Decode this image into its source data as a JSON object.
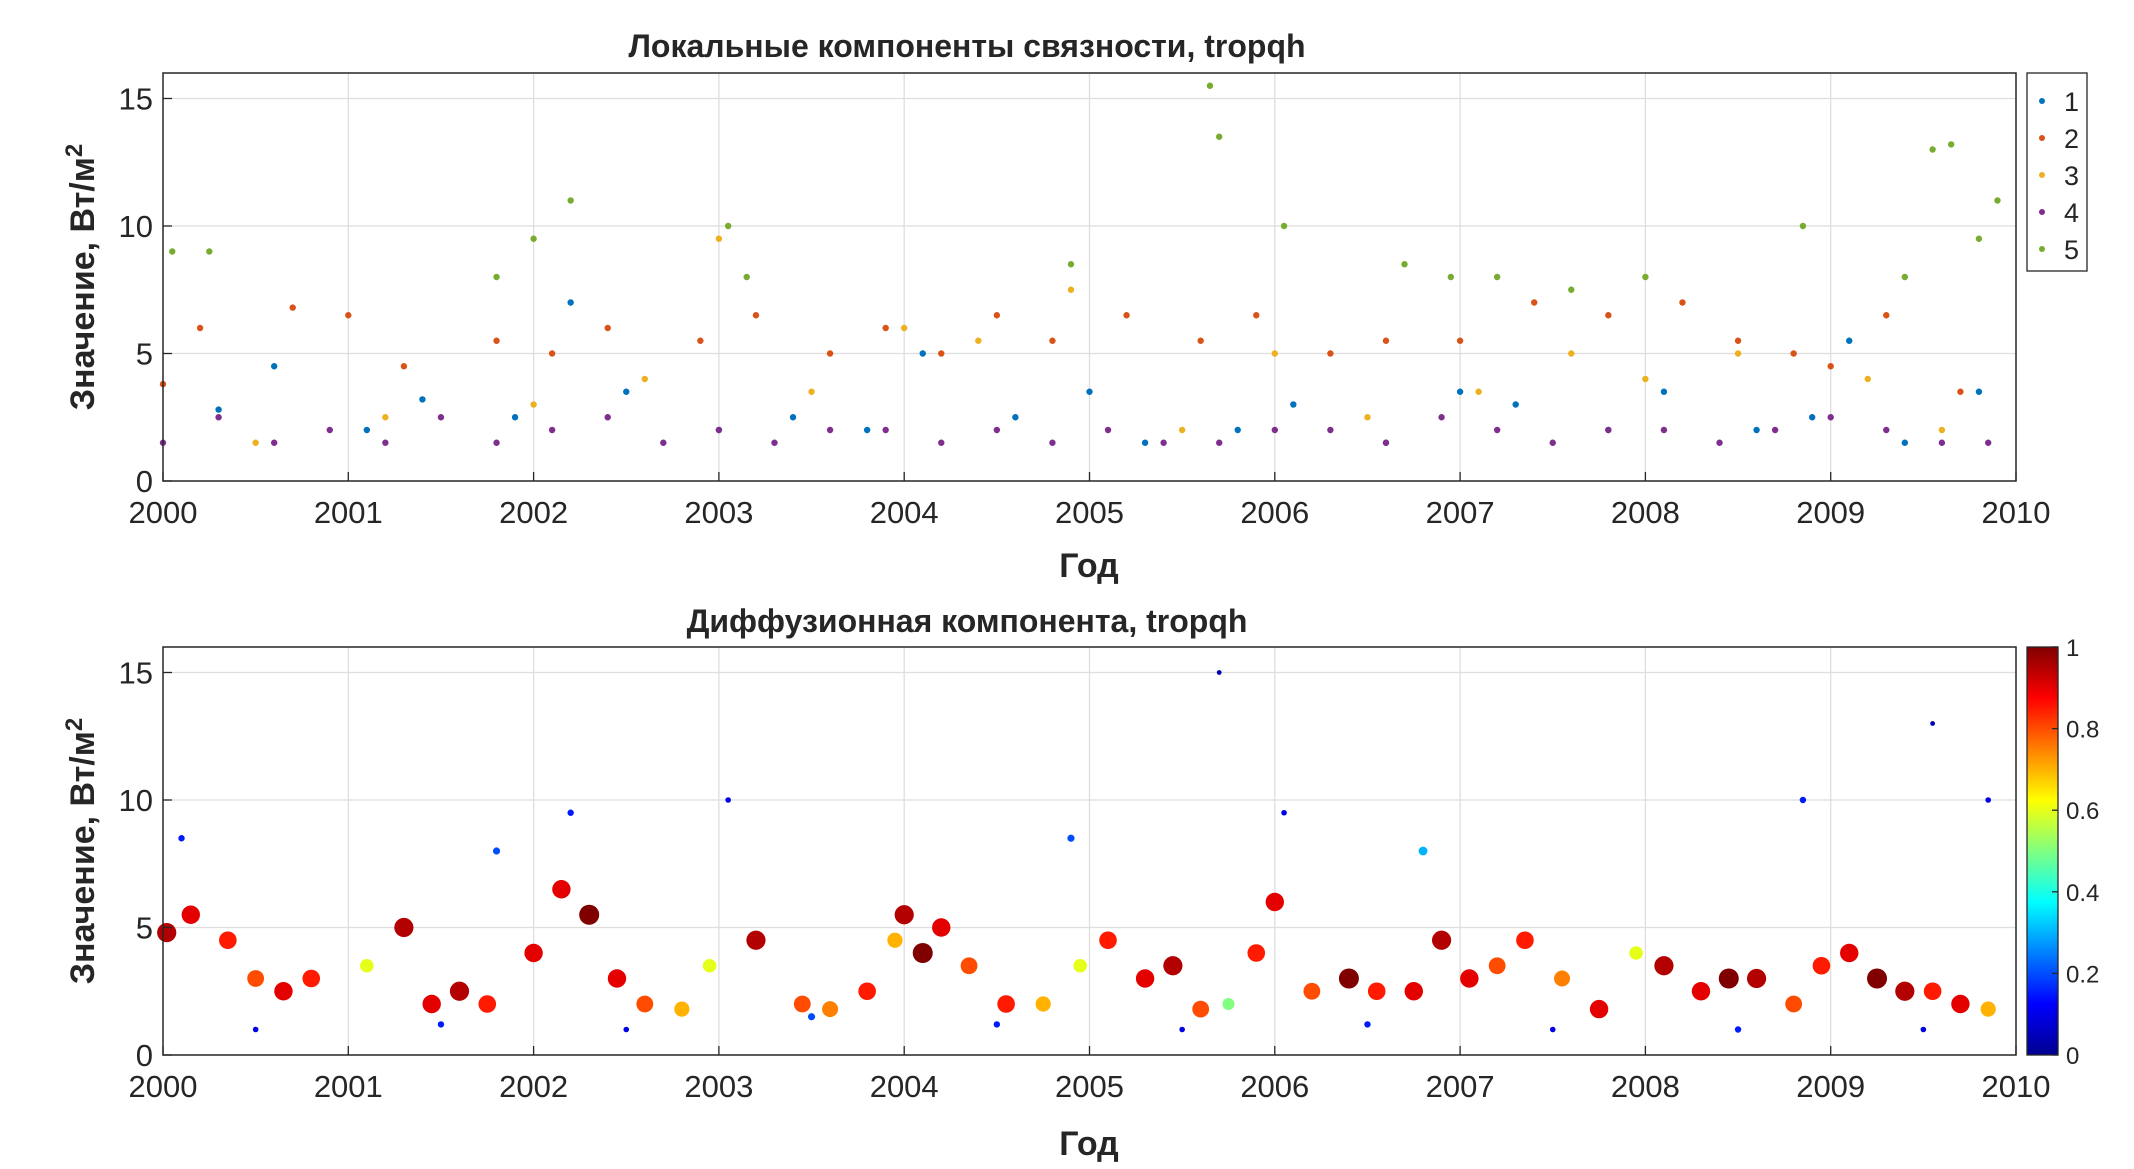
{
  "chart_data": [
    {
      "type": "scatter",
      "title": "Локальные компоненты связности, tropqh",
      "xlabel": "Год",
      "ylabel": "Значение, Вт/м",
      "ylabel_sup": "2",
      "xlim": [
        2000,
        2010
      ],
      "ylim": [
        0,
        16
      ],
      "xticks": [
        "2000",
        "2001",
        "2002",
        "2003",
        "2004",
        "2005",
        "2006",
        "2007",
        "2008",
        "2009",
        "2010"
      ],
      "yticks": [
        "0",
        "5",
        "10",
        "15"
      ],
      "grid": true,
      "legend": "top-right, outside axes",
      "series": [
        {
          "name": "1",
          "color": "#0072bd",
          "x": [
            2000.3,
            2000.6,
            2001.1,
            2001.4,
            2001.9,
            2002.2,
            2002.5,
            2003.0,
            2003.4,
            2003.8,
            2004.1,
            2004.6,
            2005.0,
            2005.3,
            2005.8,
            2006.1,
            2006.6,
            2007.0,
            2007.3,
            2007.8,
            2008.1,
            2008.6,
            2008.9,
            2009.1,
            2009.4,
            2009.8
          ],
          "y": [
            2.8,
            4.5,
            2.0,
            3.2,
            2.5,
            7.0,
            3.5,
            2.0,
            2.5,
            2.0,
            5.0,
            2.5,
            3.5,
            1.5,
            2.0,
            3.0,
            1.5,
            3.5,
            3.0,
            2.0,
            3.5,
            2.0,
            2.5,
            5.5,
            1.5,
            3.5
          ]
        },
        {
          "name": "2",
          "color": "#d95319",
          "x": [
            2000.0,
            2000.2,
            2000.7,
            2001.0,
            2001.3,
            2001.8,
            2002.1,
            2002.4,
            2002.9,
            2003.2,
            2003.6,
            2003.9,
            2004.2,
            2004.5,
            2004.8,
            2005.2,
            2005.6,
            2005.9,
            2006.3,
            2006.6,
            2007.0,
            2007.4,
            2007.8,
            2008.2,
            2008.5,
            2008.8,
            2009.0,
            2009.3,
            2009.7
          ],
          "y": [
            3.8,
            6.0,
            6.8,
            6.5,
            4.5,
            5.5,
            5.0,
            6.0,
            5.5,
            6.5,
            5.0,
            6.0,
            5.0,
            6.5,
            5.5,
            6.5,
            5.5,
            6.5,
            5.0,
            5.5,
            5.5,
            7.0,
            6.5,
            7.0,
            5.5,
            5.0,
            4.5,
            6.5,
            3.5
          ]
        },
        {
          "name": "3",
          "color": "#edb120",
          "x": [
            2000.5,
            2001.2,
            2002.0,
            2002.6,
            2003.0,
            2003.5,
            2004.0,
            2004.4,
            2004.9,
            2005.5,
            2006.0,
            2006.5,
            2007.1,
            2007.6,
            2008.0,
            2008.5,
            2009.2,
            2009.6
          ],
          "y": [
            1.5,
            2.5,
            3.0,
            4.0,
            9.5,
            3.5,
            6.0,
            5.5,
            7.5,
            2.0,
            5.0,
            2.5,
            3.5,
            5.0,
            4.0,
            5.0,
            4.0,
            2.0
          ]
        },
        {
          "name": "4",
          "color": "#7e2f8e",
          "x": [
            2000.0,
            2000.3,
            2000.6,
            2000.9,
            2001.2,
            2001.5,
            2001.8,
            2002.1,
            2002.4,
            2002.7,
            2003.0,
            2003.3,
            2003.6,
            2003.9,
            2004.2,
            2004.5,
            2004.8,
            2005.1,
            2005.4,
            2005.7,
            2006.0,
            2006.3,
            2006.6,
            2006.9,
            2007.2,
            2007.5,
            2007.8,
            2008.1,
            2008.4,
            2008.7,
            2009.0,
            2009.3,
            2009.6,
            2009.85
          ],
          "y": [
            1.5,
            2.5,
            1.5,
            2.0,
            1.5,
            2.5,
            1.5,
            2.0,
            2.5,
            1.5,
            2.0,
            1.5,
            2.0,
            2.0,
            1.5,
            2.0,
            1.5,
            2.0,
            1.5,
            1.5,
            2.0,
            2.0,
            1.5,
            2.5,
            2.0,
            1.5,
            2.0,
            2.0,
            1.5,
            2.0,
            2.5,
            2.0,
            1.5,
            1.5
          ]
        },
        {
          "name": "5",
          "color": "#77ac30",
          "x": [
            2000.05,
            2000.25,
            2001.8,
            2002.0,
            2002.2,
            2003.05,
            2003.15,
            2004.9,
            2005.65,
            2005.7,
            2006.05,
            2006.7,
            2006.95,
            2007.2,
            2007.6,
            2008.0,
            2008.85,
            2009.4,
            2009.55,
            2009.65,
            2009.8,
            2009.9
          ],
          "y": [
            9.0,
            9.0,
            8.0,
            9.5,
            11.0,
            10.0,
            8.0,
            8.5,
            15.5,
            13.5,
            10.0,
            8.5,
            8.0,
            8.0,
            7.5,
            8.0,
            10.0,
            8.0,
            13.0,
            13.2,
            9.5,
            11.0
          ]
        }
      ]
    },
    {
      "type": "scatter",
      "title": "Диффузионная компонента, tropqh",
      "xlabel": "Год",
      "ylabel": "Значение, Вт/м",
      "ylabel_sup": "2",
      "xlim": [
        2000,
        2010
      ],
      "ylim": [
        0,
        16
      ],
      "xticks": [
        "2000",
        "2001",
        "2002",
        "2003",
        "2004",
        "2005",
        "2006",
        "2007",
        "2008",
        "2009",
        "2010"
      ],
      "yticks": [
        "0",
        "5",
        "10",
        "15"
      ],
      "grid": true,
      "colorbar": {
        "ticks": [
          "0",
          "0.2",
          "0.4",
          "0.6",
          "0.8",
          "1"
        ],
        "range": [
          0,
          1
        ],
        "colormap": "jet",
        "placement": "right, outside axes"
      },
      "points": {
        "x": [
          2000.02,
          2000.15,
          2000.35,
          2000.5,
          2000.65,
          2000.8,
          2001.1,
          2001.3,
          2001.45,
          2001.6,
          2001.75,
          2002.0,
          2002.15,
          2002.3,
          2002.45,
          2002.6,
          2002.8,
          2002.95,
          2003.2,
          2003.45,
          2003.6,
          2003.8,
          2003.95,
          2004.0,
          2004.1,
          2004.2,
          2004.35,
          2004.55,
          2004.75,
          2004.95,
          2005.1,
          2005.3,
          2005.45,
          2005.6,
          2005.75,
          2005.9,
          2006.0,
          2006.2,
          2006.4,
          2006.55,
          2006.75,
          2006.9,
          2007.05,
          2007.2,
          2007.35,
          2007.55,
          2007.75,
          2007.95,
          2008.1,
          2008.3,
          2008.45,
          2008.6,
          2008.8,
          2008.95,
          2009.1,
          2009.25,
          2009.4,
          2009.55,
          2009.7,
          2009.85,
          2000.5,
          2001.5,
          2002.5,
          2003.5,
          2004.5,
          2005.5,
          2006.5,
          2007.5,
          2008.5,
          2009.5,
          2000.1,
          2001.8,
          2002.2,
          2003.05,
          2004.9,
          2005.7,
          2006.05,
          2006.8,
          2008.85,
          2009.55,
          2009.85
        ],
        "y": [
          4.8,
          5.5,
          4.5,
          3.0,
          2.5,
          3.0,
          3.5,
          5.0,
          2.0,
          2.5,
          2.0,
          4.0,
          6.5,
          5.5,
          3.0,
          2.0,
          1.8,
          3.5,
          4.5,
          2.0,
          1.8,
          2.5,
          4.5,
          5.5,
          4.0,
          5.0,
          3.5,
          2.0,
          2.0,
          3.5,
          4.5,
          3.0,
          3.5,
          1.8,
          2.0,
          4.0,
          6.0,
          2.5,
          3.0,
          2.5,
          2.5,
          4.5,
          3.0,
          3.5,
          4.5,
          3.0,
          1.8,
          4.0,
          3.5,
          2.5,
          3.0,
          3.0,
          2.0,
          3.5,
          4.0,
          3.0,
          2.5,
          2.5,
          2.0,
          1.8,
          1.0,
          1.2,
          1.0,
          1.5,
          1.2,
          1.0,
          1.2,
          1.0,
          1.0,
          1.0,
          8.5,
          8.0,
          9.5,
          10.0,
          8.5,
          15.0,
          9.5,
          8.0,
          10.0,
          13.0,
          10.0
        ],
        "c": [
          0.95,
          0.9,
          0.85,
          0.8,
          0.9,
          0.85,
          0.6,
          0.95,
          0.9,
          0.95,
          0.85,
          0.9,
          0.9,
          1.0,
          0.9,
          0.8,
          0.7,
          0.6,
          0.95,
          0.8,
          0.75,
          0.85,
          0.7,
          0.95,
          1.0,
          0.9,
          0.8,
          0.85,
          0.7,
          0.6,
          0.85,
          0.9,
          0.95,
          0.8,
          0.5,
          0.85,
          0.9,
          0.8,
          1.0,
          0.85,
          0.9,
          0.95,
          0.9,
          0.8,
          0.85,
          0.75,
          0.9,
          0.6,
          0.95,
          0.9,
          1.0,
          0.95,
          0.8,
          0.85,
          0.9,
          1.0,
          0.95,
          0.85,
          0.9,
          0.7,
          0.1,
          0.15,
          0.1,
          0.2,
          0.15,
          0.1,
          0.15,
          0.1,
          0.15,
          0.1,
          0.15,
          0.2,
          0.15,
          0.1,
          0.2,
          0.05,
          0.1,
          0.3,
          0.15,
          0.05,
          0.1
        ]
      }
    }
  ]
}
